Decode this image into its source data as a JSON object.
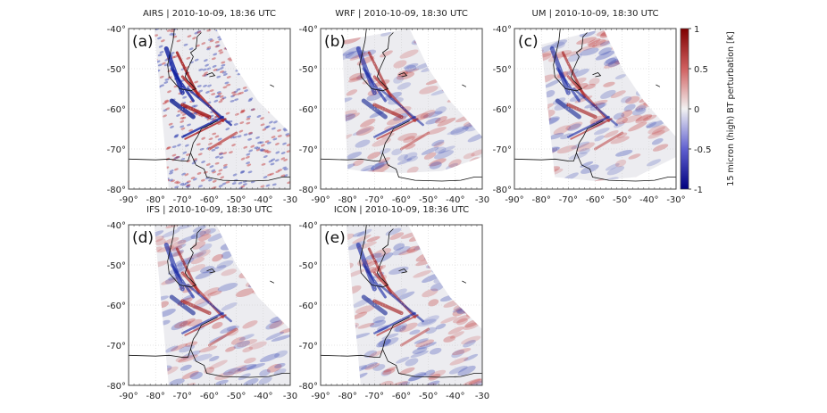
{
  "panels": [
    {
      "id": "a",
      "label": "(a)",
      "title": "AIRS | 2010-10-09, 18:36 UTC",
      "kind": "obs"
    },
    {
      "id": "b",
      "label": "(b)",
      "title": "WRF | 2010-10-09, 18:30 UTC",
      "kind": "model"
    },
    {
      "id": "c",
      "label": "(c)",
      "title": "UM | 2010-10-09, 18:30 UTC",
      "kind": "model"
    },
    {
      "id": "d",
      "label": "(d)",
      "title": "IFS | 2010-10-09, 18:30 UTC",
      "kind": "global"
    },
    {
      "id": "e",
      "label": "(e)",
      "title": "ICON | 2010-10-09, 18:36 UTC",
      "kind": "global"
    }
  ],
  "axes": {
    "lon_ticks": [
      "-90°",
      "-80°",
      "-70°",
      "-60°",
      "-50°",
      "-40°",
      "-30"
    ],
    "lon_ticks_c": [
      "-90°",
      "-80°",
      "-70°",
      "-60°",
      "-50°",
      "-40°",
      "-30°"
    ],
    "lat_ticks": [
      "-40°",
      "-50°",
      "-60°",
      "-70°",
      "-80°"
    ],
    "lon_range": [
      -90,
      -30
    ],
    "lat_range": [
      -40,
      -80
    ]
  },
  "colorbar": {
    "label": "15 micron (high) BT perturbation [K]",
    "ticks": [
      "1",
      "0.5",
      "0",
      "-0.5",
      "-1"
    ],
    "range": [
      -1,
      1
    ],
    "colors": {
      "max": "#7f0000",
      "mid": "#f2f2f2",
      "min": "#00007f"
    }
  }
}
